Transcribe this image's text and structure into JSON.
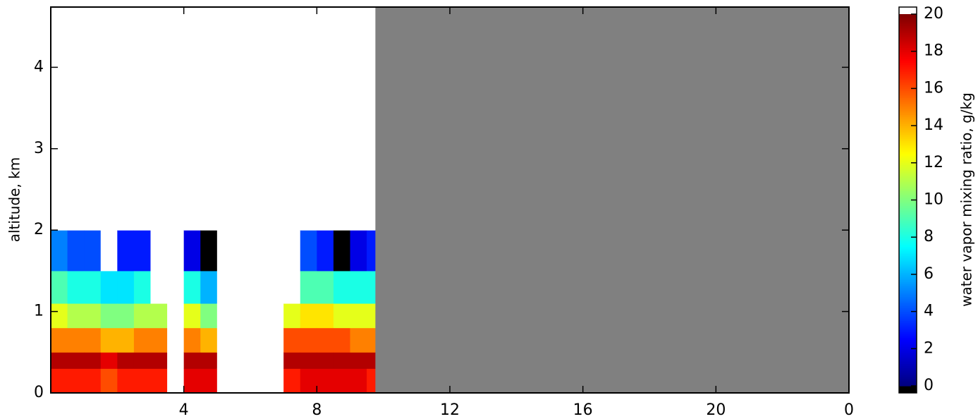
{
  "chart_data": {
    "type": "heatmap",
    "y_label": "altitude, km",
    "colorbar_label": "water vapor mixing ratio, g/kg",
    "colormap": "jet",
    "over_color": "#ffffff",
    "under_color": "#000000",
    "missing_color": "#808080",
    "xlim": [
      0,
      24
    ],
    "xticks": [
      4,
      8,
      12,
      16,
      20,
      {
        "value": 24,
        "label": "0"
      }
    ],
    "ylim": [
      0,
      4.74
    ],
    "yticks": [
      0,
      1,
      2,
      3,
      4
    ],
    "clim": [
      0,
      20
    ],
    "cticks": [
      0,
      2,
      4,
      6,
      8,
      10,
      12,
      14,
      16,
      18,
      20
    ],
    "x_bins": [
      0,
      0.5,
      1,
      1.5,
      2,
      2.5,
      3,
      3.5,
      4,
      4.5,
      5,
      5.5,
      6,
      6.5,
      7,
      7.5,
      8,
      8.5,
      9,
      9.5,
      9.75
    ],
    "y_bins": [
      0,
      0.3,
      0.5,
      0.8,
      1.1,
      1.5,
      2,
      3,
      4.74
    ],
    "values": [
      [
        17,
        19,
        15,
        12,
        9,
        5,
        null,
        null
      ],
      [
        17,
        19,
        15,
        11,
        8,
        4,
        null,
        null
      ],
      [
        17,
        19,
        15,
        11,
        8,
        4,
        null,
        null
      ],
      [
        16,
        18,
        14,
        10,
        7,
        null,
        null,
        null
      ],
      [
        17,
        19,
        14,
        10,
        7,
        3,
        null,
        null
      ],
      [
        17,
        19,
        15,
        11,
        8,
        3,
        null,
        null
      ],
      [
        17,
        19,
        15,
        11,
        null,
        null,
        null,
        null
      ],
      [
        null,
        null,
        null,
        null,
        null,
        null,
        null,
        null
      ],
      [
        18,
        19,
        15,
        12,
        8,
        2,
        null,
        null
      ],
      [
        18,
        19,
        14,
        10,
        6,
        -1,
        null,
        null
      ],
      [
        null,
        null,
        null,
        null,
        null,
        null,
        null,
        null
      ],
      [
        null,
        null,
        null,
        null,
        null,
        null,
        null,
        null
      ],
      [
        null,
        null,
        null,
        null,
        null,
        null,
        null,
        null
      ],
      [
        null,
        null,
        null,
        null,
        null,
        null,
        null,
        null
      ],
      [
        17,
        19,
        16,
        12,
        null,
        null,
        null,
        null
      ],
      [
        18,
        19,
        16,
        13,
        9,
        4,
        null,
        null
      ],
      [
        18,
        19,
        16,
        13,
        9,
        3,
        null,
        null
      ],
      [
        18,
        19,
        16,
        12,
        8,
        -1,
        null,
        null
      ],
      [
        18,
        19,
        15,
        12,
        8,
        2,
        null,
        null
      ],
      [
        17,
        19,
        15,
        12,
        8,
        3,
        null,
        null
      ]
    ]
  }
}
